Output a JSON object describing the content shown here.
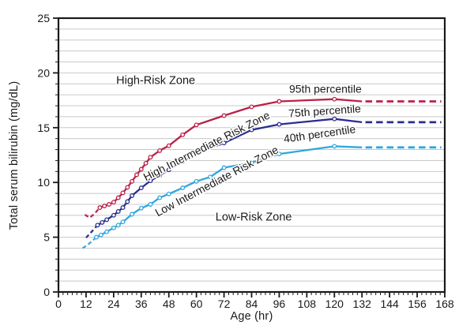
{
  "chart_data": {
    "type": "line",
    "title": "",
    "xlabel": "Age (hr)",
    "ylabel": "Total serum bilirubin (mg/dL)",
    "xlim": [
      0,
      168
    ],
    "ylim": [
      0,
      25
    ],
    "x_major_ticks": [
      0,
      12,
      24,
      36,
      48,
      60,
      72,
      84,
      96,
      108,
      120,
      132,
      144,
      156,
      168
    ],
    "x_minor_step": 2,
    "y_major_ticks": [
      0,
      5,
      10,
      15,
      20,
      25
    ],
    "y_grid_step": 1,
    "grid": "horizontal-only",
    "legend_position": "inline-curve-labels",
    "colors": {
      "grid": "#c8c8c8",
      "axis": "#1a1a1a",
      "text": "#1a1a1a",
      "background": "#ffffff"
    },
    "marker": {
      "shape": "open-circle",
      "radius": 2.3,
      "fill": "#ffffff"
    },
    "series": [
      {
        "name": "95th percentile",
        "color": "#bb2149",
        "pre_dashed": [
          [
            11.5,
            7.05
          ],
          [
            13.5,
            6.78
          ],
          [
            15.5,
            7.1
          ],
          [
            18,
            7.7
          ]
        ],
        "solid": [
          [
            18,
            7.7
          ],
          [
            20,
            7.85
          ],
          [
            22,
            8.0
          ],
          [
            24,
            8.2
          ],
          [
            26,
            8.6
          ],
          [
            28,
            9.05
          ],
          [
            30,
            9.55
          ],
          [
            32,
            10.1
          ],
          [
            34,
            10.7
          ],
          [
            36,
            11.2
          ],
          [
            38,
            11.75
          ],
          [
            40,
            12.3
          ],
          [
            44,
            12.9
          ],
          [
            48,
            13.35
          ],
          [
            54,
            14.35
          ],
          [
            60,
            15.25
          ],
          [
            72,
            16.1
          ],
          [
            84,
            16.9
          ],
          [
            96,
            17.4
          ],
          [
            120,
            17.6
          ]
        ],
        "post_solid": [
          [
            132,
            17.4
          ]
        ],
        "tail_dashed": [
          [
            133.5,
            17.4
          ],
          [
            166.5,
            17.4
          ]
        ]
      },
      {
        "name": "75th percentile",
        "color": "#2b2d8f",
        "pre_dashed": [
          [
            12,
            4.95
          ],
          [
            14,
            5.4
          ],
          [
            17,
            6.1
          ]
        ],
        "solid": [
          [
            17,
            6.1
          ],
          [
            19,
            6.35
          ],
          [
            21,
            6.6
          ],
          [
            24,
            7.0
          ],
          [
            26,
            7.35
          ],
          [
            28,
            7.7
          ],
          [
            30,
            8.25
          ],
          [
            32,
            8.8
          ],
          [
            36,
            9.5
          ],
          [
            40,
            10.15
          ],
          [
            44,
            10.65
          ],
          [
            48,
            11.15
          ],
          [
            54,
            11.9
          ],
          [
            60,
            12.65
          ],
          [
            72,
            13.6
          ],
          [
            84,
            14.8
          ],
          [
            96,
            15.3
          ],
          [
            120,
            15.8
          ]
        ],
        "post_solid": [
          [
            132,
            15.5
          ]
        ],
        "tail_dashed": [
          [
            133.5,
            15.5
          ],
          [
            166.5,
            15.5
          ]
        ]
      },
      {
        "name": "40th percentile",
        "color": "#30a7dc",
        "pre_dashed": [
          [
            10.5,
            4.0
          ],
          [
            13,
            4.35
          ],
          [
            16.5,
            5.0
          ]
        ],
        "solid": [
          [
            16.5,
            5.0
          ],
          [
            18.5,
            5.2
          ],
          [
            21,
            5.5
          ],
          [
            24,
            5.85
          ],
          [
            26,
            6.1
          ],
          [
            28,
            6.4
          ],
          [
            32,
            7.1
          ],
          [
            36,
            7.65
          ],
          [
            40,
            8.0
          ],
          [
            44,
            8.6
          ],
          [
            48,
            8.95
          ],
          [
            54,
            9.5
          ],
          [
            60,
            10.1
          ],
          [
            66,
            10.5
          ],
          [
            72,
            11.35
          ],
          [
            84,
            11.8
          ],
          [
            96,
            12.6
          ],
          [
            120,
            13.3
          ]
        ],
        "post_solid": [
          [
            132,
            13.2
          ]
        ],
        "tail_dashed": [
          [
            133.5,
            13.2
          ],
          [
            166.5,
            13.2
          ]
        ]
      }
    ],
    "annotations": [
      {
        "id": "high-risk-zone-label",
        "text": "High-Risk Zone",
        "x": 42.3,
        "y": 19.25,
        "rot": 0,
        "size": 14.5
      },
      {
        "id": "high-intermediate-risk-zone-label",
        "text": "High Intermediate Risk Zone",
        "x": 64.6,
        "y": 13.25,
        "rot": -27,
        "size": 14
      },
      {
        "id": "low-intermediate-risk-zone-label",
        "text": "Low Intermediate Risk Zone",
        "x": 69.0,
        "y": 10.05,
        "rot": -28,
        "size": 14
      },
      {
        "id": "low-risk-zone-label",
        "text": "Low-Risk Zone",
        "x": 84.9,
        "y": 6.8,
        "rot": 0,
        "size": 14.5
      },
      {
        "id": "percentile-95-label",
        "text": "95th percentile",
        "x": 116.1,
        "y": 18.45,
        "rot": 0,
        "size": 14
      },
      {
        "id": "percentile-75-label",
        "text": "75th percentile",
        "x": 115.8,
        "y": 16.45,
        "rot": -4,
        "size": 14
      },
      {
        "id": "percentile-40-label",
        "text": "40th percentile",
        "x": 113.6,
        "y": 14.35,
        "rot": -8,
        "size": 14
      }
    ]
  }
}
